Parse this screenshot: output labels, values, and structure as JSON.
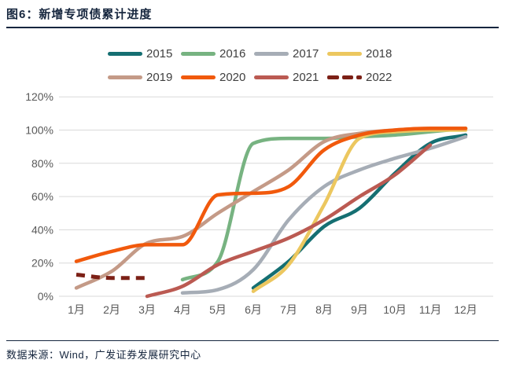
{
  "header": {
    "title": "图6：新增专项债累计进度"
  },
  "footer": {
    "source_text": "数据来源：Wind，广发证券发展研究中心"
  },
  "axes": {
    "y_tick_labels": [
      "0%",
      "20%",
      "40%",
      "60%",
      "80%",
      "100%",
      "120%"
    ],
    "x_tick_labels": [
      "1月",
      "2月",
      "3月",
      "4月",
      "5月",
      "6月",
      "7月",
      "8月",
      "9月",
      "10月",
      "11月",
      "12月"
    ]
  },
  "palette": {
    "title_navy": "#16263e",
    "axis_text": "#595959",
    "gridline": "#d9d9d9",
    "legend_text": "#404040"
  },
  "chart_data": {
    "type": "line",
    "title": "图6：新增专项债累计进度",
    "xlabel": "",
    "ylabel": "",
    "unit": "%",
    "ylim": [
      0,
      120
    ],
    "ytick_step": 20,
    "grid": "horizontal",
    "legend_position": "top",
    "categories": [
      "1月",
      "2月",
      "3月",
      "4月",
      "5月",
      "6月",
      "7月",
      "8月",
      "9月",
      "10月",
      "11月",
      "12月"
    ],
    "series": [
      {
        "name": "2015",
        "color": "#156f72",
        "dash": false,
        "values": [
          null,
          null,
          null,
          null,
          null,
          5,
          21,
          42,
          53,
          74,
          92,
          97
        ]
      },
      {
        "name": "2016",
        "color": "#77b381",
        "dash": false,
        "values": [
          null,
          null,
          null,
          10,
          21,
          92,
          95,
          95,
          96,
          97,
          99,
          101
        ]
      },
      {
        "name": "2017",
        "color": "#a6adb6",
        "dash": false,
        "values": [
          null,
          null,
          null,
          2,
          4,
          16,
          46,
          66,
          76,
          83,
          89,
          96
        ]
      },
      {
        "name": "2018",
        "color": "#ecc75f",
        "dash": false,
        "values": [
          null,
          null,
          null,
          null,
          null,
          3,
          19,
          55,
          95,
          99,
          100,
          100
        ]
      },
      {
        "name": "2019",
        "color": "#c49a87",
        "dash": false,
        "values": [
          5,
          15,
          32,
          36,
          50,
          63,
          76,
          93,
          98,
          100,
          101,
          101
        ]
      },
      {
        "name": "2020",
        "color": "#f1590c",
        "dash": false,
        "values": [
          21,
          27,
          31,
          31,
          61,
          62,
          66,
          88,
          97,
          100,
          101,
          101
        ]
      },
      {
        "name": "2021",
        "color": "#bb5a52",
        "dash": false,
        "values": [
          null,
          null,
          0,
          6,
          19,
          27,
          35,
          46,
          60,
          73,
          91,
          null
        ]
      },
      {
        "name": "2022",
        "color": "#7c2016",
        "dash": true,
        "values": [
          13,
          11,
          11,
          null,
          null,
          null,
          null,
          null,
          null,
          null,
          null,
          null
        ]
      }
    ]
  }
}
